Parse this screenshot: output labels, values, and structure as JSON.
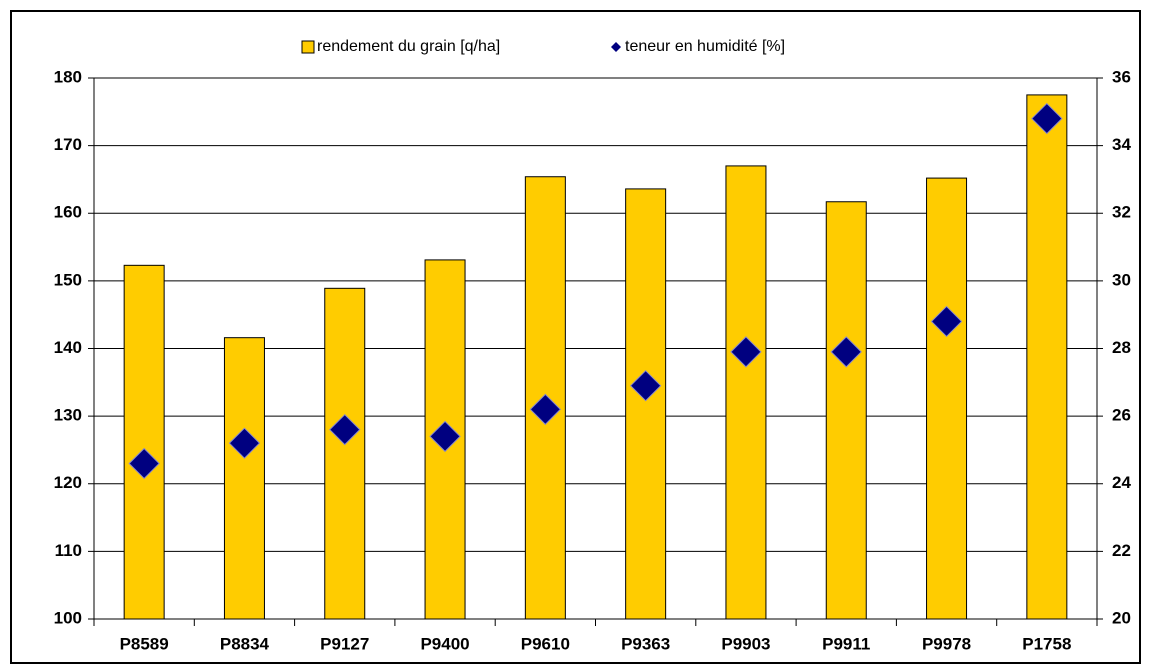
{
  "chart_data": {
    "type": "bar",
    "categories": [
      "P8589",
      "P8834",
      "P9127",
      "P9400",
      "P9610",
      "P9363",
      "P9903",
      "P9911",
      "P9978",
      "P1758"
    ],
    "series": [
      {
        "name": "rendement du grain [q/ha]",
        "type": "bar",
        "color": "#ffcc00",
        "values": [
          152.3,
          141.6,
          148.9,
          153.1,
          165.4,
          163.6,
          167.0,
          161.7,
          165.2,
          177.5
        ]
      },
      {
        "name": "teneur en humidité [%]",
        "type": "scatter",
        "axis": "y2",
        "color": "#000080",
        "values": [
          24.6,
          25.2,
          25.6,
          25.4,
          26.2,
          26.9,
          27.9,
          27.9,
          28.8,
          34.8
        ]
      }
    ],
    "ylim": [
      100,
      180
    ],
    "yticks": [
      100,
      110,
      120,
      130,
      140,
      150,
      160,
      170,
      180
    ],
    "y2lim": [
      20,
      36
    ],
    "y2ticks": [
      20,
      22,
      24,
      26,
      28,
      30,
      32,
      34,
      36
    ],
    "grid": true,
    "legend": "top"
  }
}
